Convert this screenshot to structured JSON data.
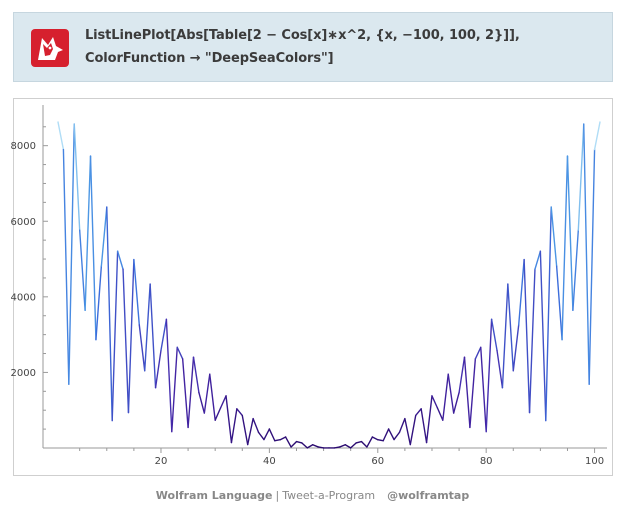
{
  "code": {
    "line1": "ListLinePlot[Abs[Table[2 − Cos[x]∗x^2, {x, −100, 100, 2}]],",
    "line2": "ColorFunction → \"DeepSeaColors\"]"
  },
  "footer": {
    "brand": "Wolfram Language",
    "separator": "|",
    "program": "Tweet-a-Program",
    "handle": "@wolframtap"
  },
  "colors": {
    "panel_background": "#dbe8ef",
    "logo_red": "#d6202e",
    "deep_sea_low": "#2a0a6e",
    "deep_sea_mid": "#3f7fe0",
    "deep_sea_high": "#b7e2f7"
  },
  "chart_data": {
    "type": "line",
    "title": "",
    "xlabel": "",
    "ylabel": "",
    "xlim": [
      1,
      101
    ],
    "ylim": [
      0,
      8600
    ],
    "x_ticks": [
      20,
      40,
      60,
      80,
      100
    ],
    "y_ticks": [
      2000,
      4000,
      6000,
      8000
    ],
    "x_tick_labels": [
      "20",
      "40",
      "60",
      "80",
      "100"
    ],
    "y_tick_labels": [
      "2000",
      "4000",
      "6000",
      "8000"
    ],
    "grid": false,
    "color_function": "DeepSeaColors",
    "series": [
      {
        "x": [
          1,
          2,
          3,
          4,
          5,
          6,
          7,
          8,
          9,
          10,
          11,
          12,
          13,
          14,
          15,
          16,
          17,
          18,
          19,
          20,
          21,
          22,
          23,
          24,
          25,
          26,
          27,
          28,
          29,
          30,
          31,
          32,
          33,
          34,
          35,
          36,
          37,
          38,
          39,
          40,
          41,
          42,
          43,
          44,
          45,
          46,
          47,
          48,
          49,
          50,
          51,
          52,
          53,
          54,
          55,
          56,
          57,
          58,
          59,
          60,
          61,
          62,
          63,
          64,
          65,
          66,
          67,
          68,
          69,
          70,
          71,
          72,
          73,
          74,
          75,
          76,
          77,
          78,
          79,
          80,
          81,
          82,
          83,
          84,
          85,
          86,
          87,
          88,
          89,
          90,
          91,
          92,
          93,
          94,
          95,
          96,
          97,
          98,
          99,
          100,
          101
        ],
        "y": [
          8626,
          7897,
          1686,
          8573,
          5765,
          3643,
          7724,
          2866,
          4812,
          6375,
          726,
          5207,
          4730,
          938,
          4986,
          3255,
          2044,
          4337,
          1595,
          2582,
          3405,
          433,
          2663,
          2358,
          544,
          2404,
          1466,
          924,
          1953,
          736,
          1062,
          1379,
          144,
          1037,
          862,
          90,
          777,
          413,
          223,
          502,
          192,
          219,
          290,
          28,
          170,
          133,
          3,
          87,
          28,
          3,
          2,
          3,
          28,
          87,
          3,
          133,
          170,
          28,
          290,
          219,
          192,
          502,
          223,
          413,
          777,
          90,
          862,
          1037,
          144,
          1379,
          1062,
          736,
          1953,
          924,
          1466,
          2404,
          544,
          2358,
          2663,
          433,
          3405,
          2582,
          1595,
          4337,
          2044,
          3255,
          4986,
          938,
          4730,
          5207,
          726,
          6375,
          4812,
          2866,
          7724,
          3643,
          5765,
          8573,
          1686,
          7897,
          8626
        ]
      }
    ]
  }
}
